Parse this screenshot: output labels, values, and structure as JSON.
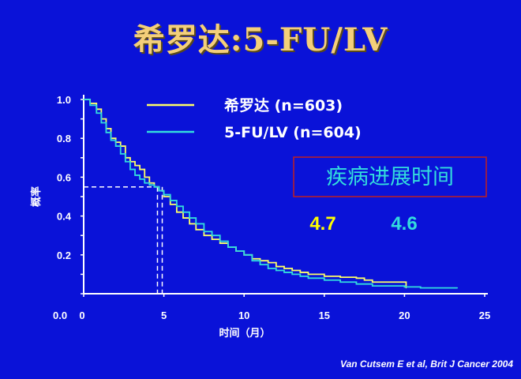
{
  "slide_title": "希罗达:5-FU/LV",
  "citation": "Van Cutsem E et al, Brit J Cancer 2004",
  "chart_data": {
    "type": "line",
    "ylabel": "概率",
    "xlabel": "时间（月）",
    "xlim": [
      0,
      25
    ],
    "ylim": [
      0,
      1
    ],
    "xticks": [
      "0",
      "5",
      "10",
      "15",
      "20",
      "25"
    ],
    "yticks": [
      "0.0",
      "0.2",
      "0.4",
      "0.6",
      "0.8",
      "1.0"
    ],
    "legend_position": "top-right",
    "series": [
      {
        "name": "希罗达 (n=603)",
        "color": "#ffff66",
        "x": [
          0,
          0.4,
          0.8,
          1.1,
          1.4,
          1.7,
          2.0,
          2.3,
          2.6,
          2.9,
          3.2,
          3.5,
          3.8,
          4.1,
          4.4,
          4.7,
          5.0,
          5.4,
          5.8,
          6.2,
          6.6,
          7.0,
          7.5,
          8.0,
          8.5,
          9.0,
          9.5,
          10.0,
          10.5,
          11.0,
          11.5,
          12.0,
          12.5,
          13.0,
          13.5,
          14.0,
          15.0,
          16.0,
          17.0,
          17.5,
          18.0,
          19.0,
          20.0,
          20.1
        ],
        "y": [
          1.0,
          0.98,
          0.95,
          0.9,
          0.85,
          0.8,
          0.78,
          0.76,
          0.7,
          0.68,
          0.66,
          0.64,
          0.6,
          0.57,
          0.55,
          0.53,
          0.5,
          0.46,
          0.42,
          0.39,
          0.36,
          0.33,
          0.3,
          0.28,
          0.26,
          0.24,
          0.22,
          0.2,
          0.18,
          0.17,
          0.16,
          0.14,
          0.13,
          0.12,
          0.11,
          0.1,
          0.09,
          0.085,
          0.08,
          0.07,
          0.06,
          0.06,
          0.06,
          0.03
        ]
      },
      {
        "name": "5-FU/LV (n=604)",
        "color": "#33dddd",
        "x": [
          0,
          0.4,
          0.8,
          1.1,
          1.4,
          1.7,
          2.0,
          2.3,
          2.6,
          2.9,
          3.2,
          3.5,
          3.8,
          4.1,
          4.4,
          4.7,
          5.0,
          5.4,
          5.8,
          6.2,
          6.6,
          7.0,
          7.5,
          8.0,
          8.5,
          9.0,
          9.5,
          10.0,
          10.5,
          11.0,
          11.5,
          12.0,
          12.5,
          13.0,
          13.5,
          14.0,
          15.0,
          16.0,
          17.0,
          18.0,
          19.0,
          20.0,
          21.0,
          22.0,
          23.3
        ],
        "y": [
          1.0,
          0.97,
          0.93,
          0.88,
          0.83,
          0.79,
          0.76,
          0.72,
          0.68,
          0.64,
          0.61,
          0.59,
          0.57,
          0.56,
          0.55,
          0.53,
          0.51,
          0.48,
          0.45,
          0.42,
          0.39,
          0.36,
          0.32,
          0.3,
          0.27,
          0.24,
          0.22,
          0.2,
          0.17,
          0.15,
          0.13,
          0.12,
          0.11,
          0.1,
          0.09,
          0.08,
          0.07,
          0.06,
          0.05,
          0.04,
          0.04,
          0.035,
          0.03,
          0.03,
          0.03
        ]
      }
    ],
    "medians": [
      {
        "series": 0,
        "x": 4.7,
        "y": 0.55
      },
      {
        "series": 1,
        "x": 4.6,
        "y": 0.55
      }
    ],
    "annotation_box": {
      "text": "疾病进展时间",
      "values": [
        {
          "text": "4.7",
          "color": "#ffff00"
        },
        {
          "text": "4.6",
          "color": "#33dddd"
        }
      ]
    }
  }
}
